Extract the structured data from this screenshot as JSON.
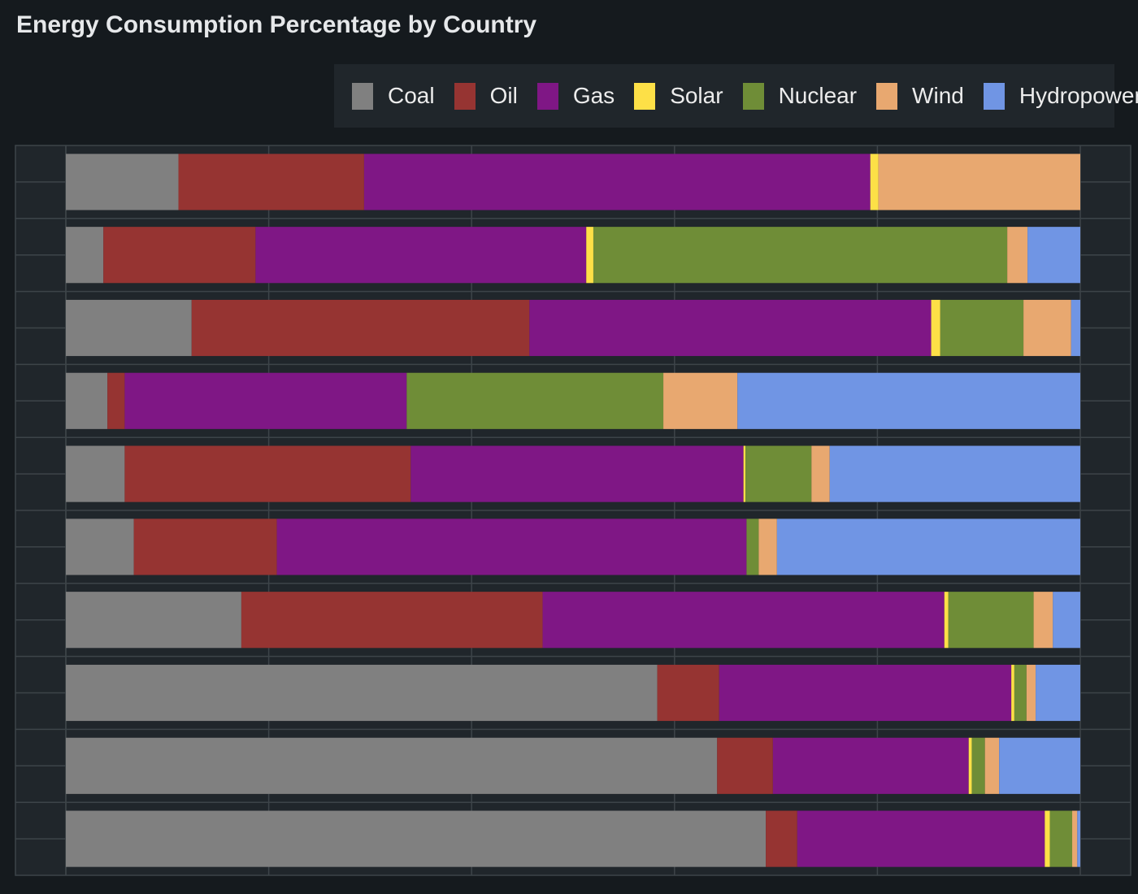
{
  "title": "Energy Consumption Percentage by Country",
  "colors": {
    "background": "#151a1e",
    "plot_background": "#20262b",
    "grid": "#3d4449"
  },
  "chart_data": {
    "type": "bar",
    "orientation": "horizontal",
    "stacked": true,
    "title": "Energy Consumption Percentage by Country",
    "xlabel": "",
    "ylabel": "",
    "xlim": [
      0,
      100
    ],
    "grid": true,
    "legend_position": "top-right",
    "categories": [
      "",
      "",
      "",
      "",
      "",
      "",
      "",
      "",
      "",
      ""
    ],
    "series": [
      {
        "name": "Coal",
        "color": "#808080",
        "values": [
          11.1,
          3.7,
          12.4,
          4.1,
          5.8,
          6.7,
          17.3,
          58.3,
          64.2,
          69.0
        ]
      },
      {
        "name": "Oil",
        "color": "#963432",
        "values": [
          18.3,
          15.0,
          33.3,
          1.7,
          28.2,
          14.1,
          29.7,
          6.1,
          5.5,
          3.1
        ]
      },
      {
        "name": "Gas",
        "color": "#7f1785",
        "values": [
          49.9,
          32.6,
          39.6,
          27.8,
          32.8,
          46.3,
          39.6,
          28.8,
          19.3,
          24.4
        ]
      },
      {
        "name": "Solar",
        "color": "#fde047",
        "values": [
          0.8,
          0.7,
          0.9,
          0.0,
          0.2,
          0.0,
          0.4,
          0.3,
          0.3,
          0.5
        ]
      },
      {
        "name": "Nuclear",
        "color": "#6f8d37",
        "values": [
          0.0,
          40.8,
          8.2,
          25.3,
          6.5,
          1.2,
          8.4,
          1.2,
          1.3,
          2.2
        ]
      },
      {
        "name": "Wind",
        "color": "#e8a870",
        "values": [
          19.9,
          2.0,
          4.7,
          7.3,
          1.8,
          1.8,
          1.9,
          0.9,
          1.4,
          0.5
        ]
      },
      {
        "name": "Hydropower",
        "color": "#7095e4",
        "values": [
          0.0,
          5.2,
          0.9,
          33.8,
          24.7,
          29.9,
          2.7,
          4.4,
          8.0,
          0.3
        ]
      }
    ]
  }
}
